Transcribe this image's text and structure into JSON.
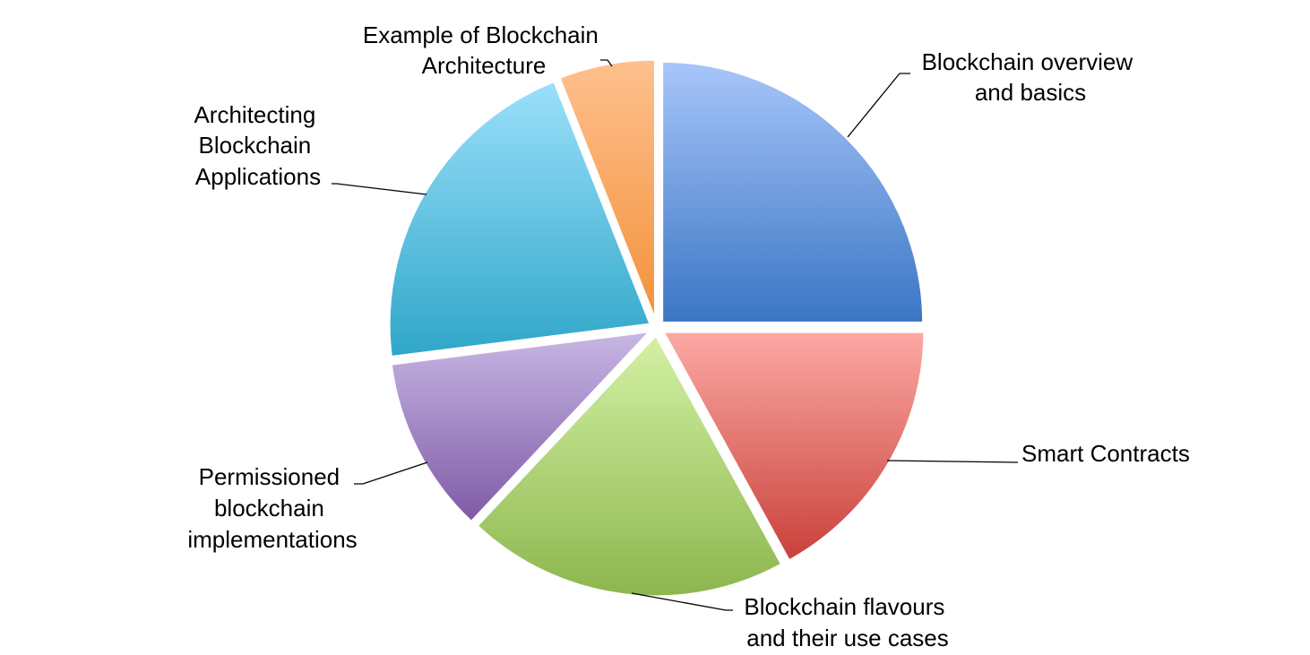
{
  "chart_data": {
    "type": "pie",
    "title": "",
    "legend": "none",
    "slices": [
      {
        "label": "Blockchain overview and basics",
        "value": 25,
        "color_light": "#a8c6fa",
        "color_dark": "#3a75c4"
      },
      {
        "label": "Smart Contracts",
        "value": 17,
        "color_light": "#fca9a4",
        "color_dark": "#c9403a"
      },
      {
        "label": "Blockchain flavours and their use cases",
        "value": 20,
        "color_light": "#d3f1a4",
        "color_dark": "#8db64e"
      },
      {
        "label": "Permissioned blockchain implementations",
        "value": 11,
        "color_light": "#c8b7e4",
        "color_dark": "#7e5aa6"
      },
      {
        "label": "Architecting Blockchain Applications",
        "value": 21,
        "color_light": "#9be0fa",
        "color_dark": "#2fa6c9"
      },
      {
        "label": "Example of Blockchain Architecture",
        "value": 6,
        "color_light": "#fec08e",
        "color_dark": "#f3913a"
      }
    ]
  }
}
